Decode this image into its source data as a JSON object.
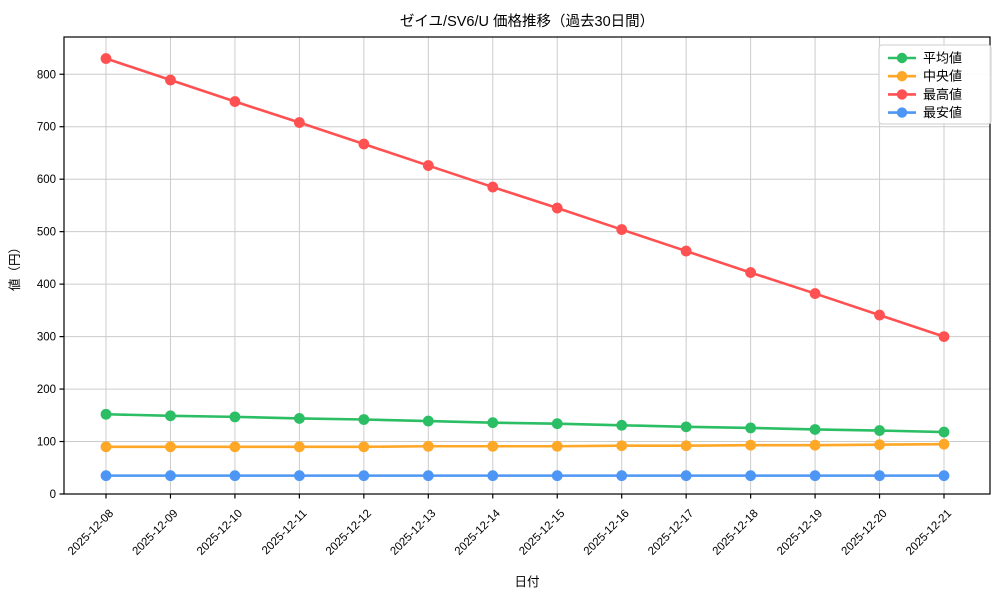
{
  "title": "ゼイユ/SV6/U 価格推移（過去30日間）",
  "chart_data": {
    "type": "line",
    "x": [
      "2025-12-08",
      "2025-12-09",
      "2025-12-10",
      "2025-12-11",
      "2025-12-12",
      "2025-12-13",
      "2025-12-14",
      "2025-12-15",
      "2025-12-16",
      "2025-12-17",
      "2025-12-18",
      "2025-12-19",
      "2025-12-20",
      "2025-12-21"
    ],
    "series": [
      {
        "name": "平均値",
        "color": "#2CBE64",
        "values": [
          152,
          149,
          147,
          144,
          142,
          139,
          136,
          134,
          131,
          128,
          126,
          123,
          121,
          118
        ]
      },
      {
        "name": "中央値",
        "color": "#FFA726",
        "values": [
          90,
          90,
          90,
          90,
          90,
          91,
          91,
          91,
          92,
          92,
          93,
          93,
          94,
          95
        ]
      },
      {
        "name": "最高値",
        "color": "#FF5152",
        "values": [
          830,
          789,
          748,
          708,
          667,
          626,
          585,
          545,
          504,
          463,
          422,
          382,
          341,
          300
        ]
      },
      {
        "name": "最安値",
        "color": "#4D96F5",
        "values": [
          35,
          35,
          35,
          35,
          35,
          35,
          35,
          35,
          35,
          35,
          35,
          35,
          35,
          35
        ]
      }
    ],
    "xlabel": "日付",
    "ylabel": "値（円）",
    "ylim": [
      0,
      871
    ],
    "yticks": [
      0,
      100,
      200,
      300,
      400,
      500,
      600,
      700,
      800
    ],
    "grid": true,
    "legend_position": "upper right"
  },
  "colors": {
    "background": "#FFFFFF",
    "grid": "#CCCCCC",
    "axis": "#000000",
    "legend_border": "#CCCCCC",
    "legend_background": "#FFFFFF"
  }
}
